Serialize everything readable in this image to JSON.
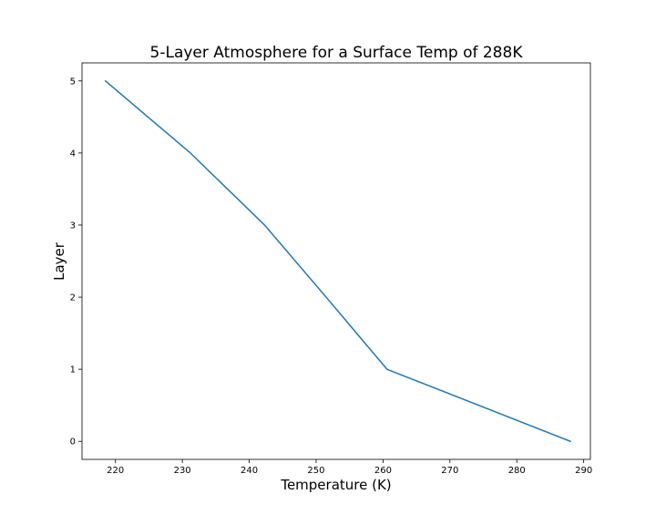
{
  "chart_data": {
    "type": "line",
    "title": "5-Layer Atmosphere for a Surface Temp of 288K",
    "xlabel": "Temperature (K)",
    "ylabel": "Layer",
    "xlim": [
      215,
      291
    ],
    "ylim": [
      -0.25,
      5.25
    ],
    "xticks": [
      220,
      230,
      240,
      250,
      260,
      270,
      280,
      290
    ],
    "yticks": [
      0,
      1,
      2,
      3,
      4,
      5
    ],
    "grid": false,
    "legend": "none",
    "series": [
      {
        "color": "#1f77b4",
        "x": [
          288.0,
          260.6,
          251.5,
          242.3,
          231.2,
          218.5
        ],
        "y": [
          0,
          1,
          2,
          3,
          4,
          5
        ]
      }
    ]
  }
}
